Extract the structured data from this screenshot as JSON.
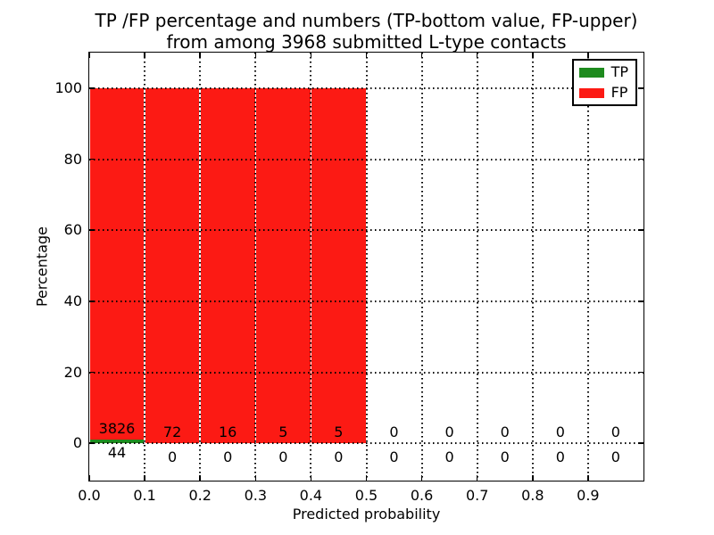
{
  "title": {
    "line1": "TP /FP percentage and numbers (TP-bottom value, FP-upper)",
    "line2": "from among 3968 submitted L-type contacts"
  },
  "chart_data": {
    "type": "bar",
    "stacked": true,
    "title": "TP /FP percentage and numbers (TP-bottom value, FP-upper) from among 3968 submitted L-type contacts",
    "xlabel": "Predicted probability",
    "ylabel": "Percentage",
    "xlim": [
      0.0,
      1.0
    ],
    "ylim": [
      -10.5,
      110
    ],
    "y_ticks": [
      0,
      20,
      40,
      60,
      80,
      100
    ],
    "x_ticks": [
      0.0,
      0.1,
      0.2,
      0.3,
      0.4,
      0.5,
      0.6,
      0.7,
      0.8,
      0.9
    ],
    "x_tick_labels": [
      "0.0",
      "0.1",
      "0.2",
      "0.3",
      "0.4",
      "0.5",
      "0.6",
      "0.7",
      "0.8",
      "0.9"
    ],
    "bin_width": 0.1,
    "grid": {
      "visible": true,
      "style": "dotted",
      "color": "#000000"
    },
    "total_contacts": 3968,
    "legend": {
      "position": "upper-right",
      "entries": [
        {
          "label": "TP",
          "color": "#1e8b1e"
        },
        {
          "label": "FP",
          "color": "#fc1a14"
        }
      ]
    },
    "series": [
      {
        "name": "TP",
        "color": "#1e8b1e",
        "counts": [
          44,
          0,
          0,
          0,
          0,
          0,
          0,
          0,
          0,
          0
        ],
        "pct": [
          1.14,
          0,
          0,
          0,
          0,
          0,
          0,
          0,
          0,
          0
        ]
      },
      {
        "name": "FP",
        "color": "#fc1a14",
        "counts": [
          3826,
          72,
          16,
          5,
          5,
          0,
          0,
          0,
          0,
          0
        ],
        "pct": [
          98.86,
          100,
          100,
          100,
          100,
          0,
          0,
          0,
          0,
          0
        ]
      }
    ]
  }
}
